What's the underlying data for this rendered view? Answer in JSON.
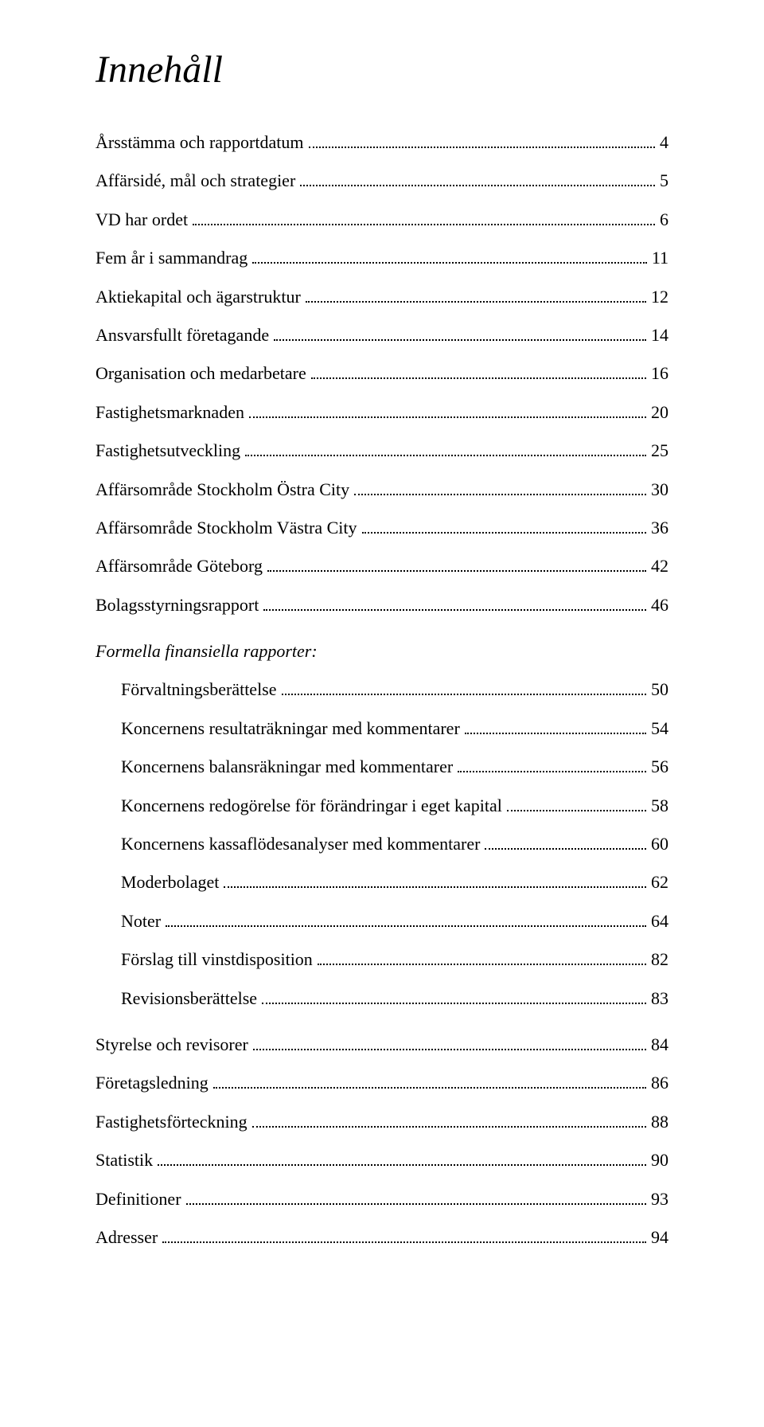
{
  "title": "Innehåll",
  "entries": [
    {
      "label": "Årsstämma och rapportdatum",
      "page": "4",
      "indent": false
    },
    {
      "label": "Affärsidé, mål och strategier",
      "page": "5",
      "indent": false
    },
    {
      "label": "VD har ordet",
      "page": "6",
      "indent": false
    },
    {
      "label": "Fem år i sammandrag",
      "page": "11",
      "indent": false
    },
    {
      "label": "Aktiekapital och ägarstruktur",
      "page": "12",
      "indent": false
    },
    {
      "label": "Ansvarsfullt företagande",
      "page": "14",
      "indent": false
    },
    {
      "label": "Organisation och medarbetare",
      "page": "16",
      "indent": false
    },
    {
      "label": "Fastighetsmarknaden",
      "page": "20",
      "indent": false
    },
    {
      "label": "Fastighetsutveckling",
      "page": "25",
      "indent": false
    },
    {
      "label": "Affärsområde Stockholm Östra City",
      "page": "30",
      "indent": false
    },
    {
      "label": "Affärsområde Stockholm Västra City",
      "page": "36",
      "indent": false
    },
    {
      "label": "Affärsområde Göteborg",
      "page": "42",
      "indent": false
    },
    {
      "label": "Bolagsstyrningsrapport",
      "page": "46",
      "indent": false
    }
  ],
  "section_header": "Formella finansiella rapporter:",
  "section_entries": [
    {
      "label": "Förvaltningsberättelse",
      "page": "50",
      "indent": true
    },
    {
      "label": "Koncernens resultaträkningar med kommentarer",
      "page": "54",
      "indent": true
    },
    {
      "label": "Koncernens balansräkningar med kommentarer",
      "page": "56",
      "indent": true
    },
    {
      "label": "Koncernens redogörelse för förändringar i eget kapital",
      "page": "58",
      "indent": true
    },
    {
      "label": "Koncernens kassaflödesanalyser med kommentarer",
      "page": "60",
      "indent": true
    },
    {
      "label": "Moderbolaget",
      "page": "62",
      "indent": true
    },
    {
      "label": "Noter",
      "page": "64",
      "indent": true
    },
    {
      "label": "Förslag till vinstdisposition",
      "page": "82",
      "indent": true
    },
    {
      "label": "Revisionsberättelse",
      "page": "83",
      "indent": true
    }
  ],
  "trailing_entries": [
    {
      "label": "Styrelse och revisorer",
      "page": "84",
      "indent": false
    },
    {
      "label": "Företagsledning",
      "page": "86",
      "indent": false
    },
    {
      "label": "Fastighetsförteckning",
      "page": "88",
      "indent": false
    },
    {
      "label": "Statistik",
      "page": "90",
      "indent": false
    },
    {
      "label": "Definitioner",
      "page": "93",
      "indent": false
    },
    {
      "label": "Adresser",
      "page": "94",
      "indent": false
    }
  ]
}
